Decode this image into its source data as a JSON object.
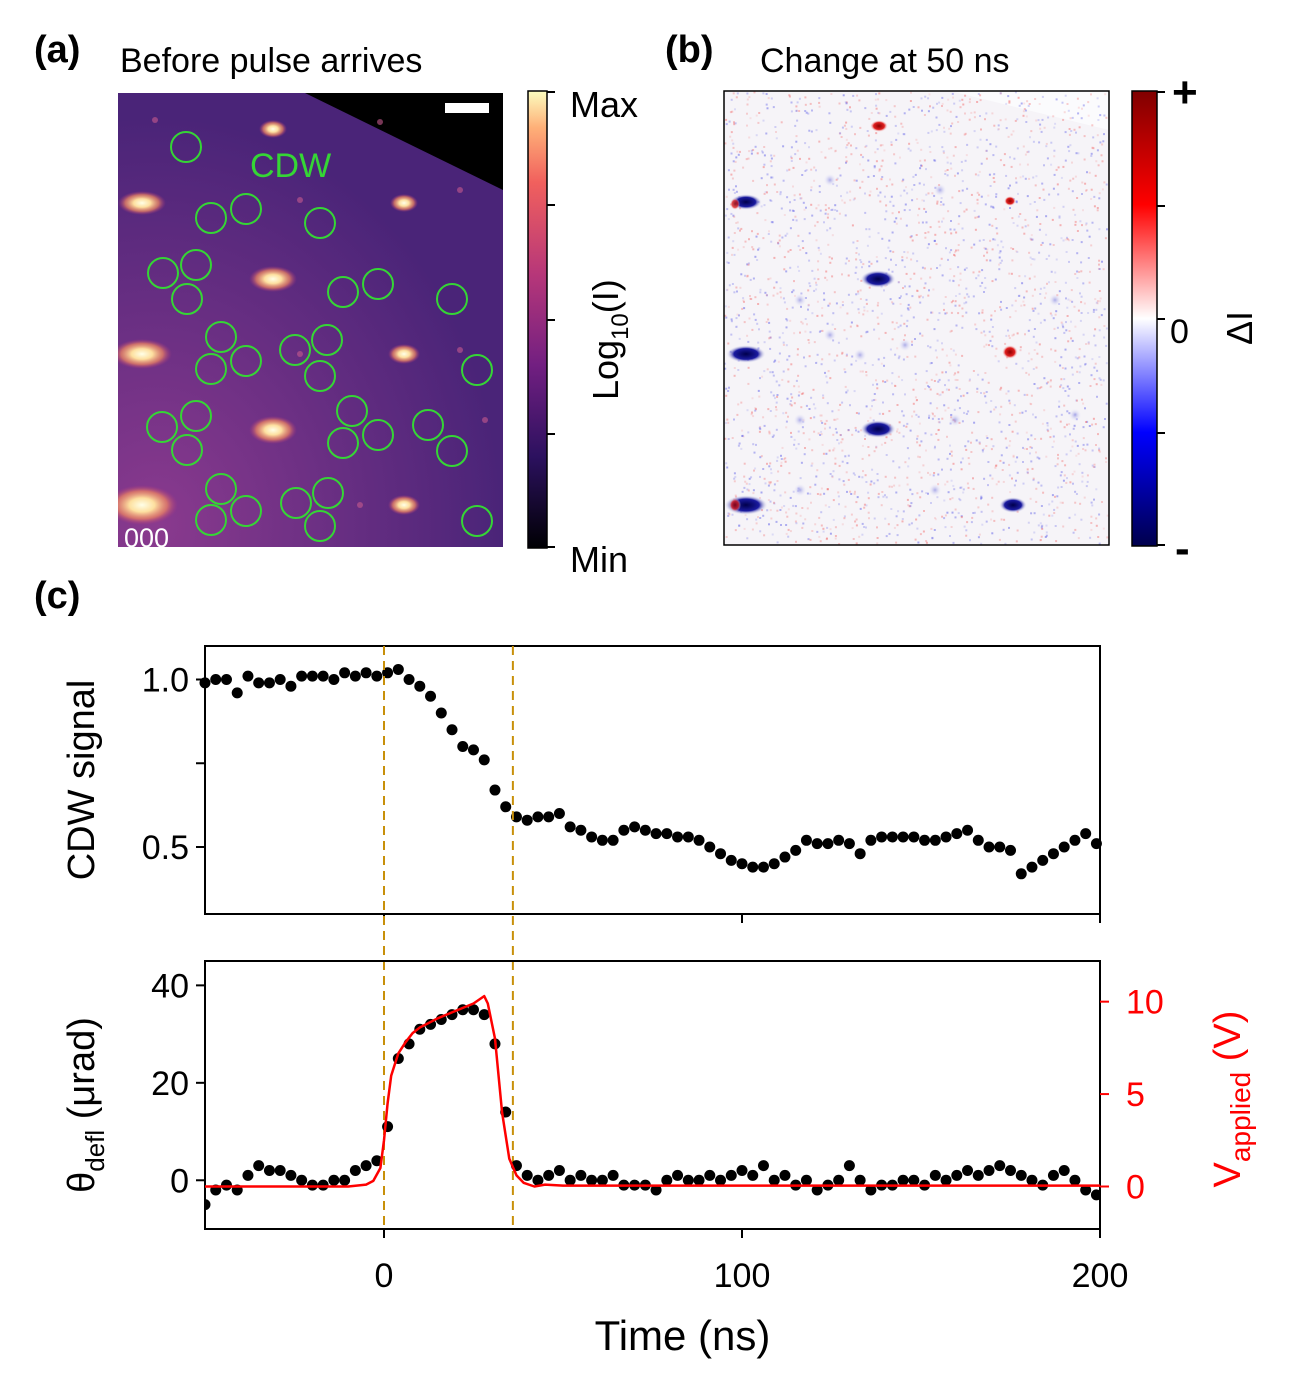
{
  "panel_a": {
    "label": "(a)",
    "title": "Before pulse arrives",
    "cdw_label": "CDW",
    "origin_label": "000",
    "colorbar": {
      "max_label": "Max",
      "min_label": "Min",
      "axis_label": "Log",
      "axis_sub": "10",
      "axis_suffix": "(I)"
    },
    "colors": {
      "cdw_circle": "#35d635",
      "background": "#5a2a8a"
    }
  },
  "panel_b": {
    "label": "(b)",
    "title": "Change at 50 ns",
    "colorbar": {
      "plus_label": "+",
      "minus_label": "-",
      "zero_label": "0",
      "axis_label": "ΔI"
    }
  },
  "panel_c": {
    "label": "(c)"
  },
  "chart_data": [
    {
      "type": "scatter",
      "title": "",
      "ylabel": "CDW signal",
      "xlim": [
        -50,
        200
      ],
      "ylim": [
        0.3,
        1.1
      ],
      "yticks": [
        0.5,
        1.0
      ],
      "ytick_labels": [
        "0.5",
        "1.0"
      ],
      "markers": {
        "vlines_x": [
          0,
          36
        ],
        "vline_color": "#c8900a",
        "point_color": "#000000"
      },
      "x": [
        -50,
        -47,
        -44,
        -41,
        -38,
        -35,
        -32,
        -29,
        -26,
        -23,
        -20,
        -17,
        -14,
        -11,
        -8,
        -5,
        -2,
        1,
        4,
        7,
        10,
        13,
        16,
        19,
        22,
        25,
        28,
        31,
        34,
        37,
        40,
        43,
        46,
        49,
        52,
        55,
        58,
        61,
        64,
        67,
        70,
        73,
        76,
        79,
        82,
        85,
        88,
        91,
        94,
        97,
        100,
        103,
        106,
        109,
        112,
        115,
        118,
        121,
        124,
        127,
        130,
        133,
        136,
        139,
        142,
        145,
        148,
        151,
        154,
        157,
        160,
        163,
        166,
        169,
        172,
        175,
        178,
        181,
        184,
        187,
        190,
        193,
        196,
        199
      ],
      "y": [
        0.99,
        1.0,
        1.0,
        0.96,
        1.01,
        0.99,
        0.99,
        1.0,
        0.98,
        1.01,
        1.01,
        1.01,
        1.0,
        1.02,
        1.01,
        1.02,
        1.01,
        1.02,
        1.03,
        1.0,
        0.98,
        0.95,
        0.9,
        0.85,
        0.8,
        0.79,
        0.76,
        0.67,
        0.62,
        0.59,
        0.58,
        0.59,
        0.59,
        0.6,
        0.56,
        0.55,
        0.53,
        0.52,
        0.52,
        0.55,
        0.56,
        0.55,
        0.54,
        0.54,
        0.53,
        0.53,
        0.52,
        0.5,
        0.48,
        0.46,
        0.45,
        0.44,
        0.44,
        0.45,
        0.47,
        0.49,
        0.52,
        0.51,
        0.51,
        0.52,
        0.51,
        0.48,
        0.52,
        0.53,
        0.53,
        0.53,
        0.53,
        0.52,
        0.52,
        0.53,
        0.54,
        0.55,
        0.52,
        0.5,
        0.5,
        0.49,
        0.42,
        0.44,
        0.46,
        0.48,
        0.5,
        0.52,
        0.54,
        0.51
      ]
    },
    {
      "type": "scatter",
      "xlabel": "Time (ns)",
      "xlim": [
        -50,
        200
      ],
      "xticks": [
        0,
        100,
        200
      ],
      "xtick_labels": [
        "0",
        "100",
        "200"
      ],
      "ylabel_parts": {
        "theta": "θ",
        "sub": "defl",
        "unit": " (μrad)"
      },
      "ylim": [
        -10,
        45
      ],
      "yticks": [
        0,
        20,
        40
      ],
      "ytick_labels": [
        "0",
        "20",
        "40"
      ],
      "y2label_parts": {
        "main": "V",
        "sub": "applied",
        "unit": " (V)"
      },
      "y2lim": [
        -2.3,
        12.2
      ],
      "y2ticks": [
        0,
        5,
        10
      ],
      "y2tick_labels": [
        "0",
        "5",
        "10"
      ],
      "y2_color": "#ff0000",
      "x": [
        -50,
        -47,
        -44,
        -41,
        -38,
        -35,
        -32,
        -29,
        -26,
        -23,
        -20,
        -17,
        -14,
        -11,
        -8,
        -5,
        -2,
        1,
        4,
        7,
        10,
        13,
        16,
        19,
        22,
        25,
        28,
        31,
        34,
        37,
        40,
        43,
        46,
        49,
        52,
        55,
        58,
        61,
        64,
        67,
        70,
        73,
        76,
        79,
        82,
        85,
        88,
        91,
        94,
        97,
        100,
        103,
        106,
        109,
        112,
        115,
        118,
        121,
        124,
        127,
        130,
        133,
        136,
        139,
        142,
        145,
        148,
        151,
        154,
        157,
        160,
        163,
        166,
        169,
        172,
        175,
        178,
        181,
        184,
        187,
        190,
        193,
        196,
        199
      ],
      "y": [
        -5,
        -2,
        -1,
        -2,
        1,
        3,
        2,
        2,
        1,
        0,
        -1,
        -1,
        0,
        0,
        2,
        3,
        4,
        11,
        25,
        28,
        31,
        32,
        33,
        34,
        35,
        35,
        34,
        28,
        14,
        3,
        1,
        0,
        1,
        2,
        0,
        1,
        0,
        0,
        1,
        -1,
        -1,
        -1,
        -2,
        0,
        1,
        0,
        0,
        1,
        0,
        1,
        2,
        1,
        3,
        0,
        1,
        -1,
        0,
        -2,
        -1,
        0,
        3,
        0,
        -2,
        -1,
        -1,
        0,
        0,
        -1,
        1,
        0,
        1,
        2,
        1,
        2,
        3,
        2,
        1,
        0,
        -1,
        1,
        2,
        0,
        -2,
        -3
      ],
      "voltage_curve": {
        "x": [
          -50,
          -10,
          -5,
          -3,
          -1,
          0,
          1,
          2,
          4,
          6,
          8,
          10,
          15,
          20,
          25,
          28,
          29,
          31,
          33,
          35,
          37,
          39,
          42,
          45,
          50,
          100,
          150,
          200
        ],
        "v": [
          0,
          0,
          0.1,
          0.3,
          1.0,
          2.5,
          4.5,
          6.0,
          7.2,
          7.8,
          8.3,
          8.6,
          9.1,
          9.5,
          9.9,
          10.3,
          9.9,
          8.0,
          4.0,
          1.5,
          0.6,
          0.2,
          0.0,
          0.1,
          0.05,
          0.05,
          0.05,
          0.05
        ]
      }
    }
  ]
}
